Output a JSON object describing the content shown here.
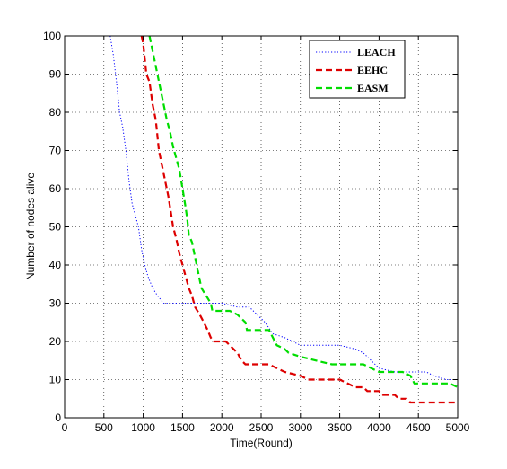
{
  "chart_data": {
    "type": "line",
    "title": "",
    "xlabel": "Time(Round)",
    "ylabel": "Number of nodes alive",
    "xlim": [
      0,
      5000
    ],
    "ylim": [
      0,
      100
    ],
    "xticks": [
      0,
      500,
      1000,
      1500,
      2000,
      2500,
      3000,
      3500,
      4000,
      4500,
      5000
    ],
    "yticks": [
      0,
      10,
      20,
      30,
      40,
      50,
      60,
      70,
      80,
      90,
      100
    ],
    "grid": true,
    "legend_position": "top-right",
    "series": [
      {
        "name": "LEACH",
        "color": "#0000ff",
        "style": "dotted",
        "points": [
          [
            580,
            100
          ],
          [
            620,
            95
          ],
          [
            660,
            88
          ],
          [
            700,
            80
          ],
          [
            740,
            76
          ],
          [
            780,
            70
          ],
          [
            820,
            62
          ],
          [
            860,
            56
          ],
          [
            900,
            53
          ],
          [
            940,
            50
          ],
          [
            980,
            44
          ],
          [
            1020,
            40
          ],
          [
            1060,
            37
          ],
          [
            1120,
            34
          ],
          [
            1180,
            32
          ],
          [
            1260,
            30
          ],
          [
            1500,
            30
          ],
          [
            1800,
            30
          ],
          [
            2000,
            30
          ],
          [
            2200,
            29
          ],
          [
            2350,
            29
          ],
          [
            2450,
            27
          ],
          [
            2550,
            25
          ],
          [
            2650,
            22
          ],
          [
            2800,
            21
          ],
          [
            2900,
            20
          ],
          [
            3000,
            19
          ],
          [
            3200,
            19
          ],
          [
            3500,
            19
          ],
          [
            3700,
            18
          ],
          [
            3800,
            17
          ],
          [
            3900,
            15
          ],
          [
            4000,
            13
          ],
          [
            4200,
            12
          ],
          [
            4600,
            12
          ],
          [
            4700,
            11
          ],
          [
            4850,
            10
          ],
          [
            5000,
            10
          ]
        ]
      },
      {
        "name": "EEHC",
        "color": "#dd0000",
        "style": "dashed",
        "points": [
          [
            980,
            100
          ],
          [
            1000,
            98
          ],
          [
            1040,
            90
          ],
          [
            1080,
            88
          ],
          [
            1120,
            82
          ],
          [
            1160,
            78
          ],
          [
            1200,
            70
          ],
          [
            1240,
            66
          ],
          [
            1280,
            62
          ],
          [
            1320,
            58
          ],
          [
            1350,
            54
          ],
          [
            1380,
            50
          ],
          [
            1420,
            47
          ],
          [
            1460,
            43
          ],
          [
            1500,
            40
          ],
          [
            1540,
            37
          ],
          [
            1580,
            34
          ],
          [
            1620,
            32
          ],
          [
            1660,
            29
          ],
          [
            1720,
            27
          ],
          [
            1770,
            25
          ],
          [
            1820,
            23
          ],
          [
            1860,
            21
          ],
          [
            1900,
            20
          ],
          [
            2050,
            20
          ],
          [
            2150,
            18
          ],
          [
            2200,
            17
          ],
          [
            2250,
            15
          ],
          [
            2300,
            14
          ],
          [
            2600,
            14
          ],
          [
            2700,
            13
          ],
          [
            2800,
            12
          ],
          [
            3000,
            11
          ],
          [
            3100,
            10
          ],
          [
            3500,
            10
          ],
          [
            3600,
            9
          ],
          [
            3700,
            8
          ],
          [
            3800,
            8
          ],
          [
            3850,
            7
          ],
          [
            4000,
            7
          ],
          [
            4050,
            6
          ],
          [
            4200,
            6
          ],
          [
            4250,
            5
          ],
          [
            4350,
            5
          ],
          [
            4400,
            4
          ],
          [
            5000,
            4
          ]
        ]
      },
      {
        "name": "EASM",
        "color": "#00dd00",
        "style": "dashed",
        "points": [
          [
            1080,
            100
          ],
          [
            1100,
            98
          ],
          [
            1140,
            94
          ],
          [
            1180,
            90
          ],
          [
            1220,
            86
          ],
          [
            1260,
            82
          ],
          [
            1300,
            78
          ],
          [
            1340,
            75
          ],
          [
            1380,
            71
          ],
          [
            1420,
            68
          ],
          [
            1460,
            65
          ],
          [
            1500,
            60
          ],
          [
            1540,
            55
          ],
          [
            1560,
            52
          ],
          [
            1580,
            48
          ],
          [
            1620,
            46
          ],
          [
            1660,
            42
          ],
          [
            1700,
            38
          ],
          [
            1740,
            34
          ],
          [
            1800,
            32
          ],
          [
            1860,
            30
          ],
          [
            1880,
            28
          ],
          [
            2100,
            28
          ],
          [
            2200,
            27
          ],
          [
            2250,
            26
          ],
          [
            2300,
            25
          ],
          [
            2320,
            23
          ],
          [
            2600,
            23
          ],
          [
            2650,
            21
          ],
          [
            2700,
            19
          ],
          [
            2800,
            18
          ],
          [
            2850,
            17
          ],
          [
            3000,
            16
          ],
          [
            3200,
            15
          ],
          [
            3400,
            14
          ],
          [
            3800,
            14
          ],
          [
            3900,
            13
          ],
          [
            4000,
            12
          ],
          [
            4300,
            12
          ],
          [
            4400,
            11
          ],
          [
            4450,
            9
          ],
          [
            4900,
            9
          ],
          [
            5000,
            8
          ]
        ]
      }
    ]
  }
}
